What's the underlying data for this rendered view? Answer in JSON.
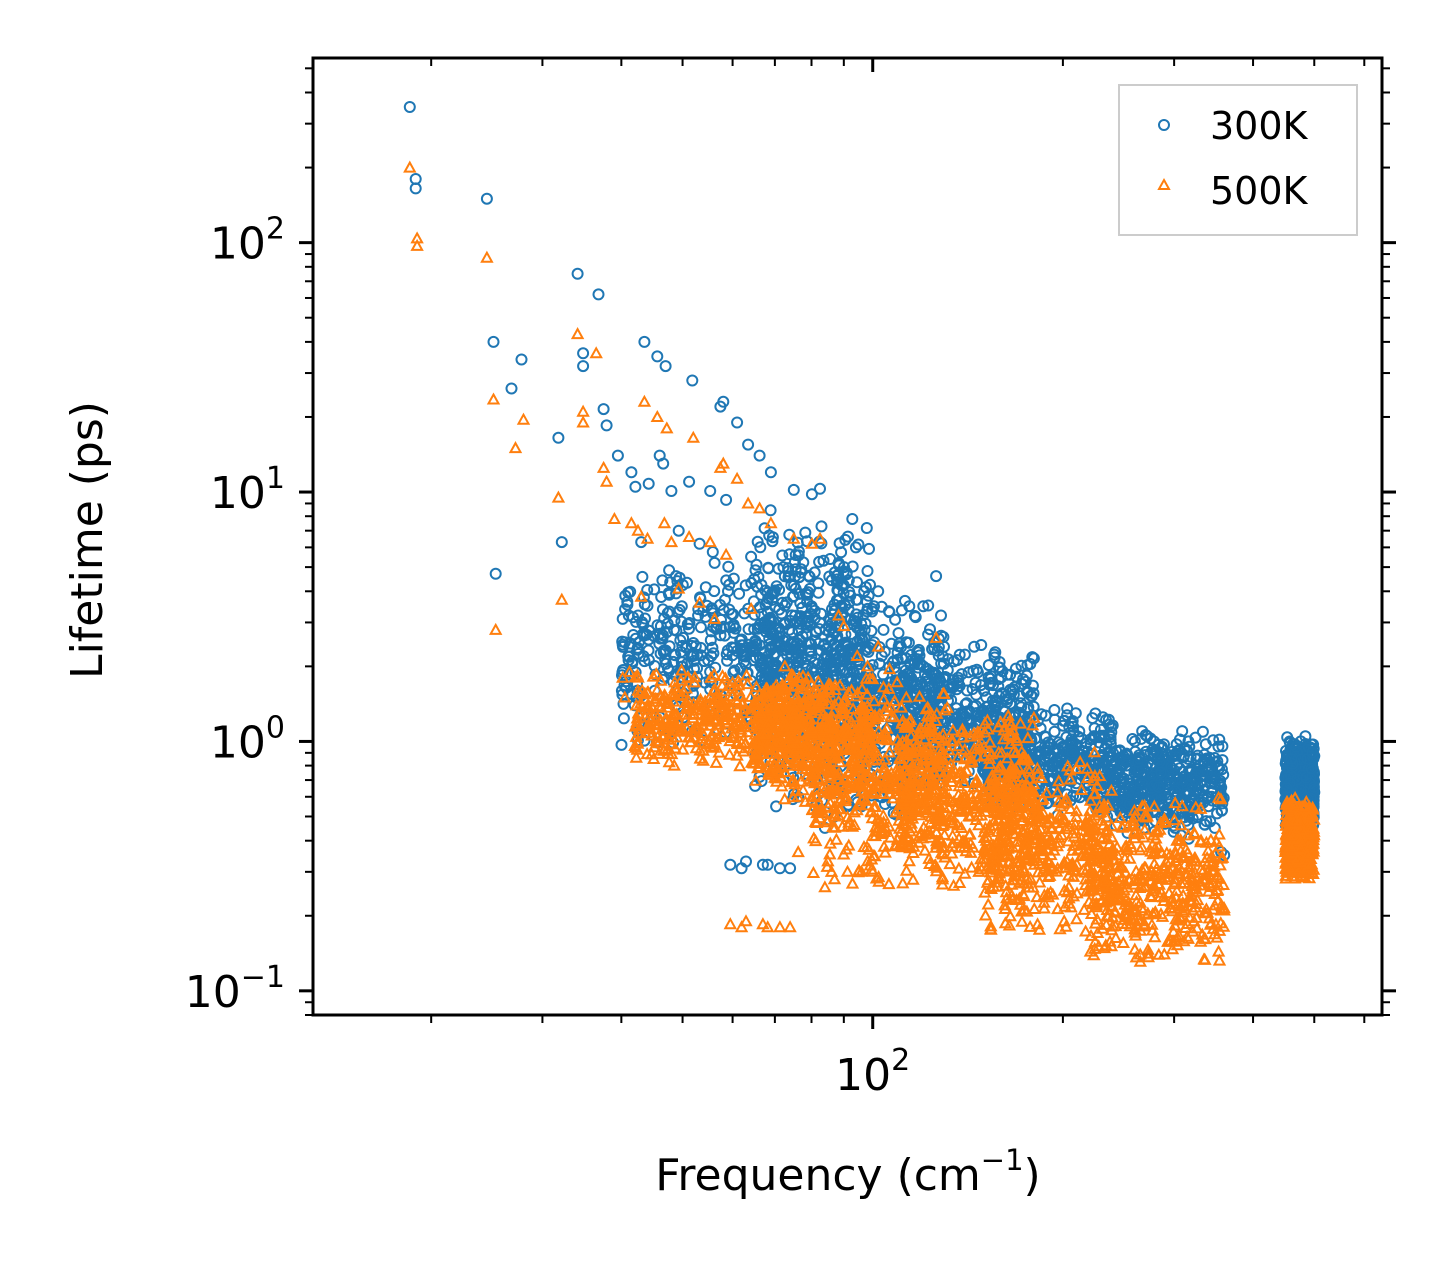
{
  "chart_data": {
    "type": "scatter",
    "title": "",
    "xlabel": "Frequency (cm",
    "xlabel_sup": "−1",
    "xlabel_end": ")",
    "ylabel": "Lifetime (ps)",
    "xscale": "log",
    "yscale": "log",
    "xlim": [
      13,
      640
    ],
    "ylim": [
      0.08,
      550
    ],
    "x_ticks": [
      {
        "value": 100,
        "base": "10",
        "exp": "2"
      }
    ],
    "y_ticks": [
      {
        "value": 0.1,
        "base": "10",
        "exp": "−1"
      },
      {
        "value": 1,
        "base": "10",
        "exp": "0"
      },
      {
        "value": 10,
        "base": "10",
        "exp": "1"
      },
      {
        "value": 100,
        "base": "10",
        "exp": "2"
      }
    ],
    "legend_position": "top-right",
    "series": [
      {
        "name": "300K",
        "marker": "circle",
        "color": "#1f77b4",
        "points": [
          [
            18.5,
            350
          ],
          [
            18.9,
            180
          ],
          [
            18.9,
            165
          ],
          [
            24.5,
            150
          ],
          [
            25.1,
            40
          ],
          [
            25.3,
            4.7
          ],
          [
            26.8,
            26
          ],
          [
            27.8,
            34
          ],
          [
            31.8,
            16.5
          ],
          [
            32.2,
            6.3
          ],
          [
            34.1,
            75
          ],
          [
            34.8,
            36
          ],
          [
            34.8,
            32
          ],
          [
            36.8,
            62
          ],
          [
            37.5,
            21.5
          ],
          [
            37.9,
            18.5
          ],
          [
            39.5,
            14
          ],
          [
            40.2,
            3.1
          ],
          [
            40.5,
            2.5
          ],
          [
            41.1,
            3.2
          ],
          [
            41.5,
            12
          ],
          [
            42.1,
            10.5
          ],
          [
            42.5,
            3.2
          ],
          [
            43.0,
            6.3
          ],
          [
            43.5,
            40
          ],
          [
            44.0,
            3.5
          ],
          [
            44.2,
            10.8
          ],
          [
            45.6,
            35
          ],
          [
            46.0,
            14
          ],
          [
            46.2,
            2.9
          ],
          [
            46.6,
            13
          ],
          [
            47.0,
            32
          ],
          [
            48.0,
            10.1
          ],
          [
            49.3,
            7.0
          ],
          [
            50.1,
            2.6
          ],
          [
            51.2,
            11
          ],
          [
            51.8,
            28
          ],
          [
            53.2,
            6.2
          ],
          [
            54.1,
            2.1
          ],
          [
            55.3,
            10.1
          ],
          [
            56.2,
            5.2
          ],
          [
            57.4,
            22
          ],
          [
            58.0,
            23
          ],
          [
            58.6,
            9.3
          ],
          [
            59.0,
            4.0
          ],
          [
            59.5,
            0.32
          ],
          [
            61.0,
            19
          ],
          [
            62.0,
            0.31
          ],
          [
            63.0,
            0.33
          ],
          [
            63.5,
            15.5
          ],
          [
            64.2,
            5.5
          ],
          [
            65.0,
            2.3
          ],
          [
            66.2,
            14
          ],
          [
            67.0,
            0.32
          ],
          [
            68.2,
            0.32
          ],
          [
            69.0,
            12
          ],
          [
            70.0,
            1.5
          ],
          [
            71.3,
            0.31
          ],
          [
            72.6,
            3.5
          ],
          [
            74.0,
            0.31
          ],
          [
            75.0,
            10.2
          ],
          [
            76.2,
            0.6
          ],
          [
            77.3,
            1.4
          ],
          [
            79.0,
            3.0
          ],
          [
            80.1,
            9.8
          ],
          [
            81.3,
            1.6
          ],
          [
            82.5,
            10.3
          ],
          [
            84.0,
            0.45
          ],
          [
            85.2,
            2.9
          ],
          [
            87.0,
            0.5
          ],
          [
            88.3,
            5.2
          ],
          [
            90.0,
            4.8
          ],
          [
            91.2,
            0.55
          ],
          [
            92.6,
            2.7
          ],
          [
            94.5,
            3.7
          ],
          [
            96.0,
            0.55
          ],
          [
            98.1,
            3.4
          ],
          [
            100.5,
            2.5
          ],
          [
            102.0,
            4.0
          ],
          [
            104.0,
            2.8
          ],
          [
            106.3,
            3.3
          ],
          [
            108.0,
            2.1
          ],
          [
            110.5,
            1.5
          ],
          [
            113.0,
            2.5
          ],
          [
            115.0,
            1.8
          ],
          [
            118.0,
            1.25
          ],
          [
            121.0,
            1.85
          ],
          [
            124.0,
            1.2
          ],
          [
            126.0,
            4.6
          ],
          [
            127.0,
            1.5
          ],
          [
            130.0,
            1.1
          ],
          [
            134.0,
            1.7
          ],
          [
            138.0,
            1.3
          ],
          [
            142.0,
            0.95
          ],
          [
            146.0,
            1.2
          ],
          [
            150.0,
            1.6
          ],
          [
            155.0,
            1.25
          ],
          [
            160.0,
            1.55
          ],
          [
            165.0,
            1.85
          ],
          [
            168.0,
            1.3
          ],
          [
            172.0,
            1.1
          ],
          [
            178.0,
            1.0
          ],
          [
            184.0,
            0.95
          ],
          [
            190.0,
            0.8
          ],
          [
            196.0,
            0.75
          ],
          [
            203.0,
            0.7
          ],
          [
            210.0,
            0.68
          ],
          [
            218.0,
            0.62
          ],
          [
            226.0,
            0.55
          ],
          [
            235.0,
            0.5
          ],
          [
            244.0,
            0.58
          ],
          [
            252.0,
            0.8
          ],
          [
            260.0,
            1.0
          ],
          [
            267.0,
            1.1
          ],
          [
            272.0,
            1.05
          ],
          [
            278.0,
            0.9
          ],
          [
            286.0,
            0.75
          ],
          [
            296.0,
            0.7
          ],
          [
            303.0,
            0.8
          ],
          [
            309.0,
            1.1
          ],
          [
            316.0,
            0.85
          ],
          [
            324.0,
            0.7
          ],
          [
            333.0,
            0.6
          ],
          [
            340.0,
            0.55
          ],
          [
            348.0,
            0.45
          ],
          [
            356.0,
            0.36
          ],
          [
            360.0,
            0.35
          ],
          [
            452.0,
            0.65
          ],
          [
            460.0,
            0.85
          ],
          [
            468.0,
            0.95
          ],
          [
            476.0,
            1.0
          ],
          [
            484.0,
            1.05
          ],
          [
            490.0,
            0.95
          ],
          [
            496.0,
            0.9
          ]
        ],
        "dense_bands": [
          {
            "x": [
              40,
              80
            ],
            "y": [
              0.9,
              6.0
            ]
          },
          {
            "x": [
              65,
              100
            ],
            "y": [
              0.5,
              9.0
            ]
          },
          {
            "x": [
              80,
              130
            ],
            "y": [
              0.45,
              4.0
            ]
          },
          {
            "x": [
              110,
              180
            ],
            "y": [
              0.6,
              2.6
            ]
          },
          {
            "x": [
              150,
              240
            ],
            "y": [
              0.5,
              1.4
            ]
          },
          {
            "x": [
              240,
              360
            ],
            "y": [
              0.4,
              1.12
            ]
          },
          {
            "x": [
              450,
              500
            ],
            "y": [
              0.4,
              1.05
            ]
          }
        ]
      },
      {
        "name": "500K",
        "marker": "triangle",
        "color": "#ff7f0e",
        "points": [
          [
            18.5,
            200
          ],
          [
            19.0,
            104
          ],
          [
            19.0,
            97
          ],
          [
            24.5,
            87
          ],
          [
            25.1,
            23.5
          ],
          [
            25.3,
            2.8
          ],
          [
            27.2,
            15
          ],
          [
            28.0,
            19.5
          ],
          [
            31.8,
            9.5
          ],
          [
            32.2,
            3.7
          ],
          [
            34.1,
            43
          ],
          [
            34.8,
            21
          ],
          [
            34.8,
            19
          ],
          [
            36.5,
            36
          ],
          [
            37.5,
            12.5
          ],
          [
            37.9,
            11
          ],
          [
            39.0,
            7.8
          ],
          [
            40.2,
            1.8
          ],
          [
            40.5,
            1.5
          ],
          [
            41.2,
            1.9
          ],
          [
            41.5,
            7.5
          ],
          [
            42.5,
            7.0
          ],
          [
            43.0,
            3.8
          ],
          [
            43.5,
            23
          ],
          [
            44.0,
            6.5
          ],
          [
            45.0,
            0.85
          ],
          [
            45.6,
            20
          ],
          [
            46.2,
            1.75
          ],
          [
            46.8,
            7.5
          ],
          [
            47.2,
            18
          ],
          [
            48.0,
            6.3
          ],
          [
            48.5,
            0.8
          ],
          [
            49.3,
            4.1
          ],
          [
            51.2,
            6.6
          ],
          [
            52.0,
            16.5
          ],
          [
            53.2,
            3.6
          ],
          [
            54.0,
            1.2
          ],
          [
            55.3,
            6.3
          ],
          [
            56.2,
            3.1
          ],
          [
            57.4,
            12.5
          ],
          [
            58.0,
            13
          ],
          [
            58.6,
            5.6
          ],
          [
            59.5,
            0.185
          ],
          [
            61.0,
            11.3
          ],
          [
            62.0,
            0.18
          ],
          [
            63.0,
            0.19
          ],
          [
            63.5,
            9.0
          ],
          [
            64.2,
            3.4
          ],
          [
            65.0,
            1.4
          ],
          [
            66.2,
            8.6
          ],
          [
            67.0,
            0.185
          ],
          [
            68.2,
            0.18
          ],
          [
            69.0,
            7.5
          ],
          [
            70.0,
            0.8
          ],
          [
            71.3,
            0.18
          ],
          [
            72.6,
            2.0
          ],
          [
            74.0,
            0.18
          ],
          [
            75.0,
            6.5
          ],
          [
            76.2,
            0.36
          ],
          [
            77.3,
            0.8
          ],
          [
            79.0,
            1.8
          ],
          [
            80.1,
            6.2
          ],
          [
            81.3,
            0.9
          ],
          [
            82.5,
            6.5
          ],
          [
            84.0,
            0.26
          ],
          [
            85.2,
            1.7
          ],
          [
            87.0,
            0.28
          ],
          [
            88.3,
            3.2
          ],
          [
            90.0,
            2.9
          ],
          [
            91.2,
            0.3
          ],
          [
            92.6,
            1.6
          ],
          [
            94.5,
            2.2
          ],
          [
            96.0,
            0.3
          ],
          [
            98.1,
            2.0
          ],
          [
            100.5,
            1.45
          ],
          [
            102.0,
            2.4
          ],
          [
            104.0,
            1.65
          ],
          [
            106.3,
            1.95
          ],
          [
            108.0,
            1.25
          ],
          [
            110.5,
            0.85
          ],
          [
            113.0,
            1.5
          ],
          [
            115.0,
            1.05
          ],
          [
            118.0,
            0.7
          ],
          [
            121.0,
            1.1
          ],
          [
            124.0,
            0.7
          ],
          [
            126.0,
            2.6
          ],
          [
            127.0,
            0.85
          ],
          [
            130.0,
            0.6
          ],
          [
            134.0,
            1.0
          ],
          [
            138.0,
            0.75
          ],
          [
            142.0,
            0.5
          ],
          [
            146.0,
            0.7
          ],
          [
            150.0,
            0.95
          ],
          [
            155.0,
            0.7
          ],
          [
            160.0,
            0.9
          ],
          [
            165.0,
            1.05
          ],
          [
            168.0,
            0.75
          ],
          [
            172.0,
            0.6
          ],
          [
            178.0,
            0.55
          ],
          [
            184.0,
            0.5
          ],
          [
            190.0,
            0.42
          ],
          [
            196.0,
            0.38
          ],
          [
            203.0,
            0.33
          ],
          [
            210.0,
            0.3
          ],
          [
            218.0,
            0.25
          ],
          [
            226.0,
            0.22
          ],
          [
            235.0,
            0.2
          ],
          [
            244.0,
            0.25
          ],
          [
            252.0,
            0.38
          ],
          [
            260.0,
            0.5
          ],
          [
            267.0,
            0.55
          ],
          [
            272.0,
            0.5
          ],
          [
            278.0,
            0.42
          ],
          [
            286.0,
            0.36
          ],
          [
            296.0,
            0.33
          ],
          [
            303.0,
            0.4
          ],
          [
            309.0,
            0.55
          ],
          [
            316.0,
            0.42
          ],
          [
            324.0,
            0.34
          ],
          [
            333.0,
            0.28
          ],
          [
            340.0,
            0.25
          ],
          [
            348.0,
            0.22
          ],
          [
            356.0,
            0.21
          ],
          [
            360.0,
            0.21
          ],
          [
            452.0,
            0.3
          ],
          [
            460.0,
            0.42
          ],
          [
            468.0,
            0.48
          ],
          [
            476.0,
            0.5
          ],
          [
            484.0,
            0.55
          ],
          [
            490.0,
            0.5
          ],
          [
            496.0,
            0.45
          ]
        ],
        "dense_bands": [
          {
            "x": [
              42,
              80
            ],
            "y": [
              0.75,
              2.0
            ]
          },
          {
            "x": [
              65,
              100
            ],
            "y": [
              0.55,
              2.0
            ]
          },
          {
            "x": [
              80,
              130
            ],
            "y": [
              0.25,
              1.8
            ]
          },
          {
            "x": [
              110,
              180
            ],
            "y": [
              0.25,
              1.5
            ]
          },
          {
            "x": [
              150,
              240
            ],
            "y": [
              0.15,
              0.95
            ]
          },
          {
            "x": [
              220,
              360
            ],
            "y": [
              0.12,
              0.6
            ]
          },
          {
            "x": [
              450,
              500
            ],
            "y": [
              0.27,
              0.6
            ]
          }
        ]
      }
    ]
  }
}
